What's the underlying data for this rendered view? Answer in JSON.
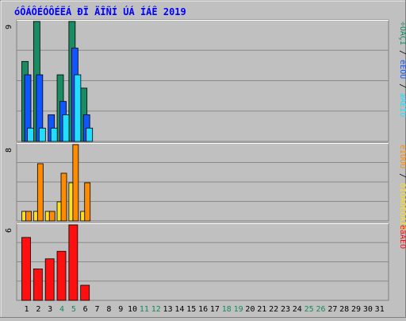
{
  "chart_data": {
    "type": "bar",
    "title": "óÔÁÔÉÓÔÉËÁ ÐÏ ÄÎÑÍ ÚÁ ÍÁÊ 2019",
    "colors": {
      "title": "#0000ff",
      "teal": "#1a8c64",
      "blue": "#1155ff",
      "cyan": "#22ddff",
      "yellow": "#ffe020",
      "orange": "#ff8c00",
      "red": "#ff1010",
      "weekend_label": "#158a5a",
      "label_default": "#000000"
    },
    "days": [
      "1",
      "2",
      "3",
      "4",
      "5",
      "6",
      "7",
      "8",
      "9",
      "10",
      "11",
      "12",
      "13",
      "14",
      "15",
      "16",
      "17",
      "18",
      "19",
      "20",
      "21",
      "22",
      "23",
      "24",
      "25",
      "26",
      "27",
      "28",
      "29",
      "30",
      "31"
    ],
    "weekend_days": [
      4,
      5,
      11,
      12,
      18,
      19,
      25,
      26
    ],
    "panels": [
      {
        "ymax_label": "9",
        "ymax": 9,
        "right_label_parts": [
          {
            "text": "÷ÓÅÇÏ",
            "color": "#1a8c64"
          },
          {
            "text": " / ",
            "color": "#000000"
          },
          {
            "text": "èÉÔÙ",
            "color": "#1155ff"
          },
          {
            "text": " / ",
            "color": "#000000"
          },
          {
            "text": "æÁÊÌÙ",
            "color": "#22ddff"
          }
        ],
        "series": [
          {
            "color": "#1a8c64",
            "values": [
              6,
              9,
              0,
              5,
              9,
              4
            ]
          },
          {
            "color": "#1155ff",
            "values": [
              5,
              5,
              2,
              3,
              7,
              2
            ]
          },
          {
            "color": "#22ddff",
            "values": [
              1,
              1,
              1,
              2,
              5,
              1
            ]
          }
        ]
      },
      {
        "ymax_label": "8",
        "ymax": 8,
        "right_label_parts": [
          {
            "text": "èÏÓÔÙ",
            "color": "#ff8c00"
          },
          {
            "text": " / ",
            "color": "#000000"
          },
          {
            "text": "ðÏÓÅÔÉÔÅÌÉ",
            "color": "#ffe020"
          }
        ],
        "series": [
          {
            "color": "#ff8c00",
            "values": [
              1,
              6,
              1,
              5,
              8,
              4
            ]
          },
          {
            "color": "#ffe020",
            "values": [
              1,
              1,
              1,
              2,
              4,
              1
            ]
          }
        ]
      },
      {
        "ymax_label": "6",
        "ymax": 6,
        "right_label_parts": [
          {
            "text": "ëâÁÊÔ",
            "color": "#ff1010"
          }
        ],
        "series": [
          {
            "color": "#ff1010",
            "values": [
              5,
              2.5,
              3.3,
              3.9,
              6,
              1.2
            ]
          }
        ]
      }
    ]
  }
}
